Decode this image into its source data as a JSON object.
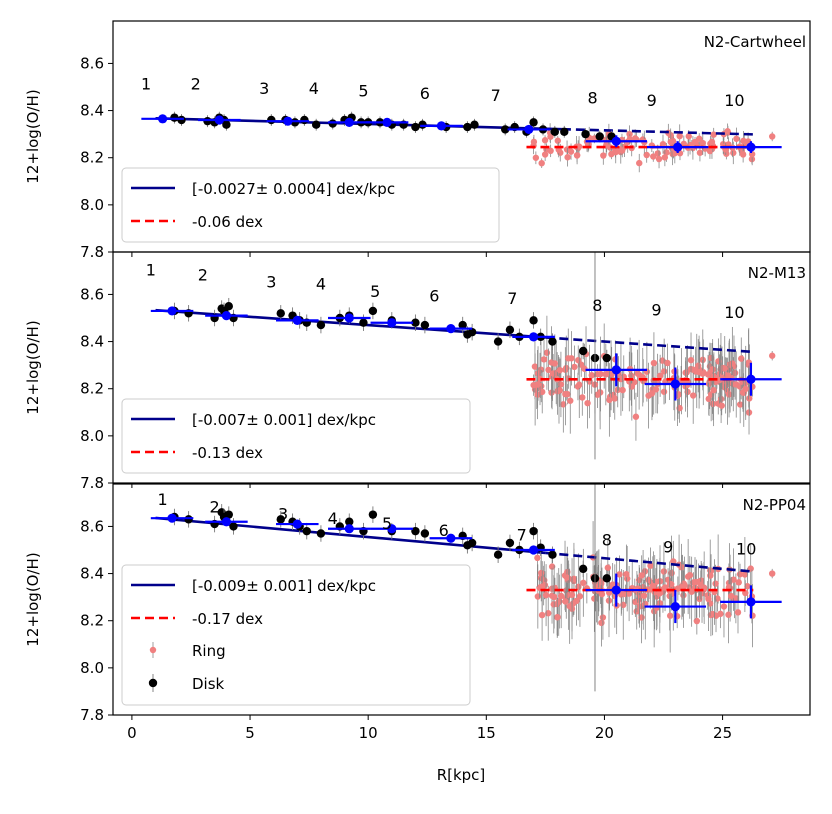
{
  "chart_data": {
    "type": "scatter",
    "xlabel": "R[kpc]",
    "xlim": [
      -0.8,
      28.7
    ],
    "xticks": [
      0,
      5,
      10,
      15,
      20,
      25
    ],
    "legend_labels": {
      "ring": "Ring",
      "disk": "Disk"
    },
    "colors": {
      "disk": "#000000",
      "ring": "#f08080",
      "binned": "#0000ff",
      "fit": "#00008b",
      "ring_mean": "#ff0000"
    },
    "ring_label_text": [
      "1",
      "2",
      "3",
      "4",
      "5",
      "6",
      "7",
      "8",
      "9",
      "10"
    ],
    "panels": [
      {
        "title": "N2-Cartwheel",
        "ylabel": "12+log(O/H)",
        "ylim": [
          7.8,
          8.78
        ],
        "yticks": [
          "7.8",
          "8.0",
          "8.2",
          "8.4",
          "8.6"
        ],
        "fit_label": "[-0.0027± 0.0004] dex/kpc",
        "ring_offset_label": "-0.06 dex",
        "fit_line": {
          "intercept": 8.37,
          "slope": -0.0027,
          "x_solid": [
            1.0,
            18.2
          ],
          "x_dash": [
            18.2,
            26.3
          ]
        },
        "ring_mean": {
          "y": 8.245,
          "x": [
            16.7,
            26.3
          ]
        },
        "disk_points": [
          [
            1.8,
            8.37
          ],
          [
            2.1,
            8.36
          ],
          [
            3.2,
            8.355
          ],
          [
            3.5,
            8.35
          ],
          [
            3.7,
            8.37
          ],
          [
            3.9,
            8.36
          ],
          [
            4.0,
            8.34
          ],
          [
            5.9,
            8.36
          ],
          [
            6.5,
            8.36
          ],
          [
            6.9,
            8.35
          ],
          [
            7.3,
            8.36
          ],
          [
            7.8,
            8.34
          ],
          [
            8.5,
            8.345
          ],
          [
            9.0,
            8.36
          ],
          [
            9.3,
            8.37
          ],
          [
            9.7,
            8.35
          ],
          [
            10.0,
            8.35
          ],
          [
            10.5,
            8.35
          ],
          [
            11.0,
            8.34
          ],
          [
            11.5,
            8.34
          ],
          [
            12.0,
            8.33
          ],
          [
            12.3,
            8.34
          ],
          [
            13.3,
            8.33
          ],
          [
            14.2,
            8.33
          ],
          [
            14.5,
            8.34
          ],
          [
            15.8,
            8.32
          ],
          [
            16.2,
            8.33
          ],
          [
            16.7,
            8.31
          ],
          [
            17.0,
            8.35
          ],
          [
            17.4,
            8.32
          ],
          [
            17.9,
            8.31
          ],
          [
            18.3,
            8.31
          ],
          [
            19.2,
            8.3
          ],
          [
            19.8,
            8.29
          ],
          [
            20.3,
            8.29
          ]
        ],
        "binned_points": [
          [
            1.3,
            8.365
          ],
          [
            3.7,
            8.36
          ],
          [
            6.6,
            8.355
          ],
          [
            9.2,
            8.35
          ],
          [
            10.8,
            8.35
          ],
          [
            13.1,
            8.335
          ],
          [
            16.8,
            8.32
          ],
          [
            20.5,
            8.27
          ],
          [
            23.1,
            8.245
          ],
          [
            26.2,
            8.245
          ]
        ],
        "ring_labels": [
          [
            0.6,
            8.49
          ],
          [
            2.7,
            8.49
          ],
          [
            5.6,
            8.47
          ],
          [
            7.7,
            8.47
          ],
          [
            9.8,
            8.46
          ],
          [
            12.4,
            8.45
          ],
          [
            15.4,
            8.44
          ],
          [
            19.5,
            8.43
          ],
          [
            22.0,
            8.42
          ],
          [
            25.5,
            8.42
          ]
        ]
      },
      {
        "title": "N2-M13",
        "ylabel": "12+log(O/H)",
        "ylim": [
          7.8,
          8.78
        ],
        "yticks": [
          "7.8",
          "8.0",
          "8.2",
          "8.4",
          "8.6"
        ],
        "fit_label": "[-0.007± 0.001] dex/kpc",
        "ring_offset_label": "-0.13 dex",
        "fit_line": {
          "intercept": 8.54,
          "slope": -0.007,
          "x_solid": [
            1.0,
            17.5
          ],
          "x_dash": [
            17.5,
            26.3
          ]
        },
        "ring_mean": {
          "y": 8.24,
          "x": [
            16.7,
            26.3
          ]
        },
        "disk_points": [
          [
            1.8,
            8.53
          ],
          [
            2.4,
            8.52
          ],
          [
            3.5,
            8.5
          ],
          [
            3.8,
            8.54
          ],
          [
            3.9,
            8.53
          ],
          [
            4.1,
            8.55
          ],
          [
            4.3,
            8.5
          ],
          [
            6.3,
            8.52
          ],
          [
            6.8,
            8.51
          ],
          [
            7.1,
            8.49
          ],
          [
            7.4,
            8.48
          ],
          [
            8.0,
            8.47
          ],
          [
            8.8,
            8.5
          ],
          [
            9.2,
            8.51
          ],
          [
            9.8,
            8.48
          ],
          [
            10.2,
            8.53
          ],
          [
            11.0,
            8.49
          ],
          [
            12.0,
            8.48
          ],
          [
            12.4,
            8.47
          ],
          [
            14.0,
            8.47
          ],
          [
            14.2,
            8.43
          ],
          [
            14.4,
            8.44
          ],
          [
            15.5,
            8.4
          ],
          [
            16.0,
            8.45
          ],
          [
            16.4,
            8.42
          ],
          [
            17.0,
            8.49
          ],
          [
            17.3,
            8.42
          ],
          [
            17.8,
            8.4
          ],
          [
            19.1,
            8.36
          ],
          [
            19.6,
            8.33
          ],
          [
            20.1,
            8.33
          ]
        ],
        "binned_points": [
          [
            1.7,
            8.53
          ],
          [
            4.0,
            8.51
          ],
          [
            7.0,
            8.49
          ],
          [
            9.2,
            8.5
          ],
          [
            11.0,
            8.48
          ],
          [
            13.5,
            8.455
          ],
          [
            17.0,
            8.42
          ],
          [
            20.5,
            8.28
          ],
          [
            23.0,
            8.22
          ],
          [
            26.2,
            8.24
          ]
        ],
        "ring_labels": [
          [
            0.8,
            8.68
          ],
          [
            3.0,
            8.66
          ],
          [
            5.9,
            8.63
          ],
          [
            8.0,
            8.62
          ],
          [
            10.3,
            8.59
          ],
          [
            12.8,
            8.57
          ],
          [
            16.1,
            8.56
          ],
          [
            19.7,
            8.53
          ],
          [
            22.2,
            8.51
          ],
          [
            25.5,
            8.5
          ]
        ]
      },
      {
        "title": "N2-PP04",
        "ylabel": "12+log(O/H)",
        "ylim": [
          7.8,
          8.78
        ],
        "yticks": [
          "7.8",
          "8.0",
          "8.2",
          "8.4",
          "8.6"
        ],
        "fit_label": "[-0.009± 0.001] dex/kpc",
        "ring_offset_label": "-0.17 dex",
        "fit_line": {
          "intercept": 8.645,
          "slope": -0.009,
          "x_solid": [
            1.0,
            17.5
          ],
          "x_dash": [
            17.5,
            26.3
          ]
        },
        "ring_mean": {
          "y": 8.33,
          "x": [
            16.7,
            26.3
          ]
        },
        "disk_points": [
          [
            1.8,
            8.64
          ],
          [
            2.4,
            8.63
          ],
          [
            3.5,
            8.61
          ],
          [
            3.8,
            8.66
          ],
          [
            3.9,
            8.64
          ],
          [
            4.1,
            8.65
          ],
          [
            4.3,
            8.6
          ],
          [
            6.3,
            8.63
          ],
          [
            6.8,
            8.62
          ],
          [
            7.1,
            8.6
          ],
          [
            7.4,
            8.58
          ],
          [
            8.0,
            8.57
          ],
          [
            8.8,
            8.6
          ],
          [
            9.2,
            8.62
          ],
          [
            9.8,
            8.58
          ],
          [
            10.2,
            8.65
          ],
          [
            11.0,
            8.58
          ],
          [
            12.0,
            8.58
          ],
          [
            12.4,
            8.57
          ],
          [
            14.0,
            8.56
          ],
          [
            14.2,
            8.52
          ],
          [
            14.4,
            8.53
          ],
          [
            15.5,
            8.48
          ],
          [
            16.0,
            8.53
          ],
          [
            16.4,
            8.5
          ],
          [
            17.0,
            8.58
          ],
          [
            17.3,
            8.51
          ],
          [
            17.8,
            8.48
          ],
          [
            19.1,
            8.42
          ],
          [
            19.6,
            8.38
          ],
          [
            20.1,
            8.38
          ]
        ],
        "binned_points": [
          [
            1.7,
            8.635
          ],
          [
            4.0,
            8.62
          ],
          [
            7.0,
            8.61
          ],
          [
            9.2,
            8.59
          ],
          [
            11.0,
            8.59
          ],
          [
            13.5,
            8.55
          ],
          [
            17.0,
            8.5
          ],
          [
            20.5,
            8.33
          ],
          [
            23.0,
            8.26
          ],
          [
            26.2,
            8.28
          ]
        ],
        "ring_labels": [
          [
            1.3,
            8.69
          ],
          [
            3.5,
            8.66
          ],
          [
            6.4,
            8.63
          ],
          [
            8.5,
            8.61
          ],
          [
            10.8,
            8.59
          ],
          [
            13.2,
            8.56
          ],
          [
            16.5,
            8.54
          ],
          [
            20.1,
            8.52
          ],
          [
            22.7,
            8.49
          ],
          [
            26.0,
            8.48
          ]
        ]
      }
    ]
  }
}
